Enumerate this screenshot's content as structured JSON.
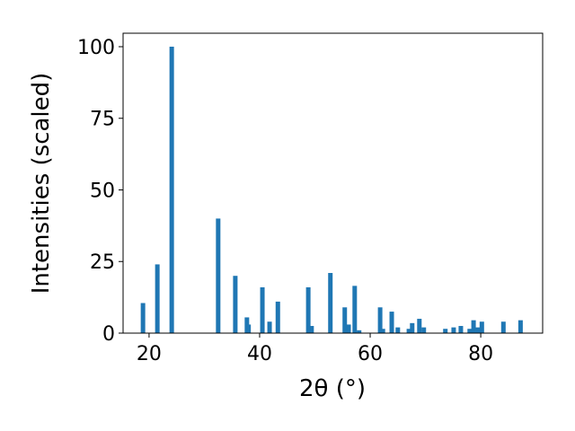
{
  "chart_data": {
    "type": "bar",
    "xlabel": "2θ (°)",
    "ylabel": "Intensities (scaled)",
    "x": [
      18.9,
      21.5,
      24.1,
      32.5,
      35.6,
      37.7,
      38.0,
      40.5,
      41.8,
      43.3,
      48.8,
      49.4,
      52.8,
      55.4,
      56.1,
      57.2,
      58.0,
      61.8,
      62.3,
      63.9,
      65.0,
      67.0,
      67.6,
      68.9,
      69.7,
      73.6,
      75.1,
      76.4,
      78.0,
      78.7,
      79.5,
      80.2,
      84.1,
      87.2
    ],
    "values": [
      10.5,
      24,
      100,
      40,
      20,
      5.5,
      3,
      16,
      4,
      11,
      16,
      2.5,
      21,
      9,
      3,
      16.5,
      1,
      9,
      1.5,
      7.5,
      2,
      1.5,
      3.5,
      5,
      2,
      1.5,
      2,
      2.5,
      1.5,
      4.5,
      2,
      4,
      4,
      4.5
    ],
    "color": "#1f77b4",
    "xlim": [
      15.3,
      91.2
    ],
    "xticks": [
      20,
      40,
      60,
      80
    ],
    "ylim": [
      0,
      104.7
    ],
    "yticks": [
      0,
      25,
      50,
      75,
      100
    ]
  }
}
